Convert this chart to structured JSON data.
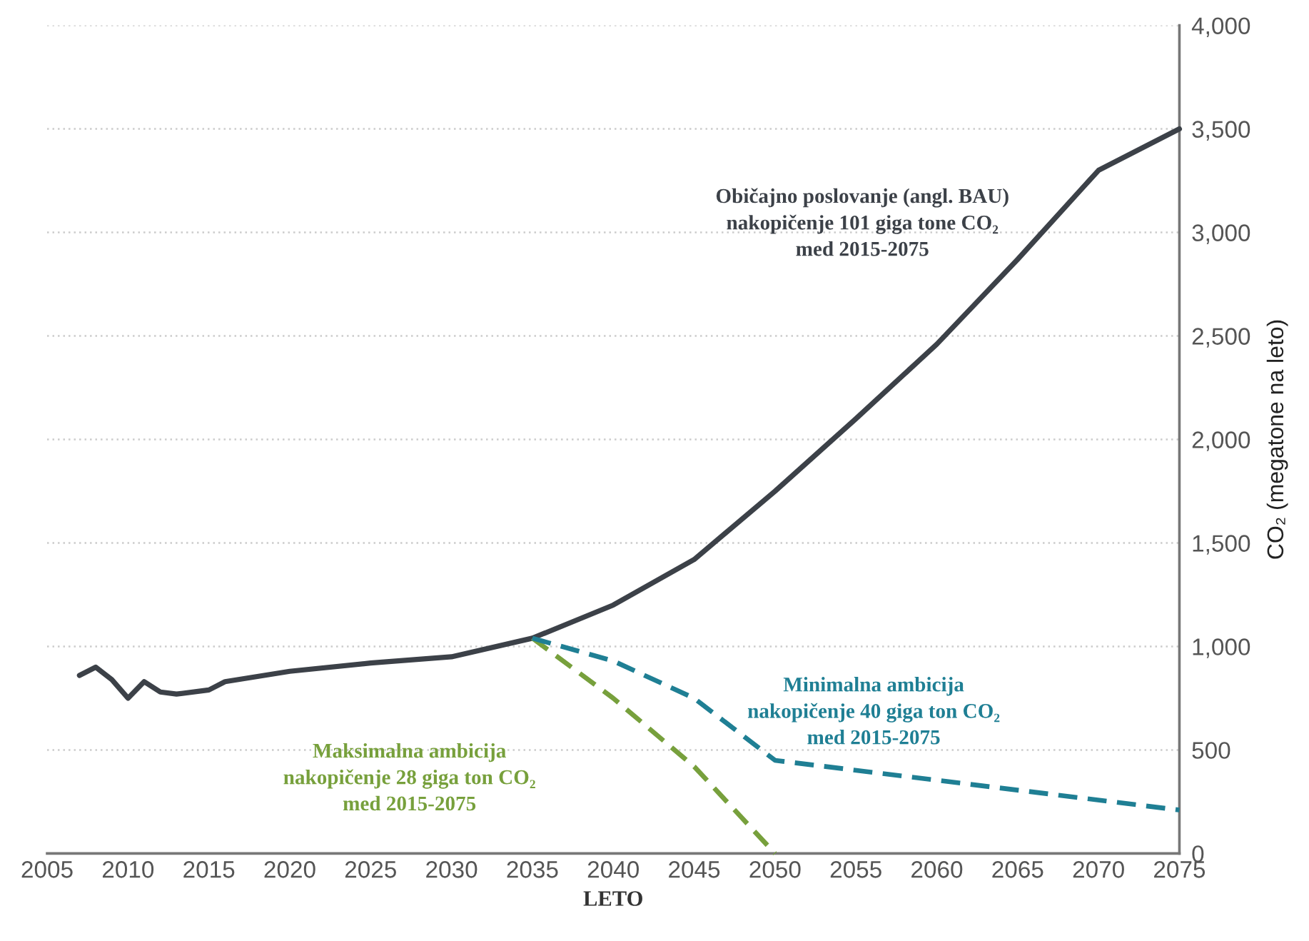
{
  "chart_data": {
    "type": "line",
    "xlabel": "LETO",
    "ylabel": "CO₂ (megatone na leto)",
    "xlim": [
      2005,
      2075
    ],
    "ylim": [
      0,
      4000
    ],
    "xticks": [
      2005,
      2010,
      2015,
      2020,
      2025,
      2030,
      2035,
      2040,
      2045,
      2050,
      2055,
      2060,
      2065,
      2070,
      2075
    ],
    "yticks": [
      0,
      500,
      {
        "value": 1000,
        "label": "1,000"
      },
      {
        "value": 1500,
        "label": "1,500"
      },
      {
        "value": 2000,
        "label": "2,000"
      },
      {
        "value": 2500,
        "label": "2,500"
      },
      {
        "value": 3000,
        "label": "3,000"
      },
      {
        "value": 3500,
        "label": "3,500"
      },
      {
        "value": 4000,
        "label": "4,000"
      }
    ],
    "grid": "y",
    "legend": false,
    "marker": "none",
    "series": [
      {
        "name": "Običajno poslovanje (angl. BAU)\nnakopičenje 101 giga tone CO₂\nmed 2015-2075",
        "color": "#3c4148",
        "line_style": "solid",
        "x": [
          2007,
          2008,
          2009,
          2010,
          2011,
          2012,
          2013,
          2015,
          2016,
          2020,
          2025,
          2030,
          2035,
          2040,
          2045,
          2050,
          2055,
          2060,
          2065,
          2070,
          2075
        ],
        "values": [
          860,
          900,
          840,
          750,
          830,
          780,
          770,
          790,
          830,
          880,
          920,
          950,
          1040,
          1200,
          1420,
          1750,
          2100,
          2460,
          2870,
          3300,
          3500
        ]
      },
      {
        "name": "Maksimalna ambicija\nnakopičenje 28 giga ton CO₂\nmed 2015-2075",
        "color": "#77a03c",
        "line_style": "dashed",
        "x": [
          2035,
          2040,
          2045,
          2050
        ],
        "values": [
          1040,
          750,
          420,
          0
        ]
      },
      {
        "name": "Minimalna ambicija\nnakopičenje 40 giga ton CO₂\nmed 2015-2075",
        "color": "#1f7f94",
        "line_style": "dashed",
        "x": [
          2035,
          2040,
          2045,
          2050,
          2075
        ],
        "values": [
          1040,
          930,
          750,
          450,
          210
        ]
      }
    ]
  }
}
